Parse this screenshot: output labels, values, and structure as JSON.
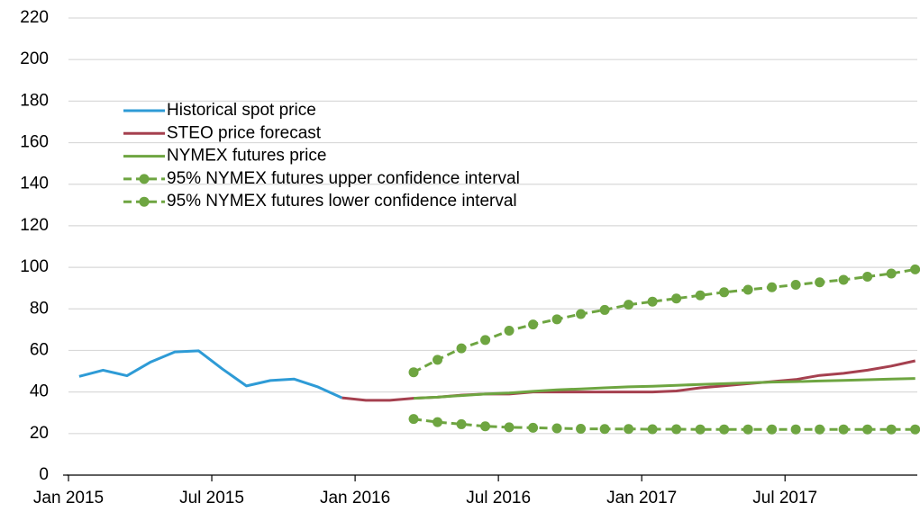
{
  "chart_data": {
    "type": "line",
    "categories": [
      "Jan 2015",
      null,
      null,
      null,
      null,
      null,
      "Jul 2015",
      null,
      null,
      null,
      null,
      null,
      "Jan 2016",
      null,
      null,
      null,
      null,
      null,
      "Jul 2016",
      null,
      null,
      null,
      null,
      null,
      "Jan 2017",
      null,
      null,
      null,
      null,
      null,
      "Jul 2017",
      null,
      null,
      null,
      null,
      null
    ],
    "series": [
      {
        "name": "Historical spot price",
        "color": "#2e9bd6",
        "values": [
          47.5,
          50.5,
          47.8,
          54.5,
          59.3,
          59.8,
          51,
          42.9,
          45.5,
          46.2,
          42.4,
          37.2,
          null,
          null,
          null,
          null,
          null,
          null,
          null,
          null,
          null,
          null,
          null,
          null,
          null,
          null,
          null,
          null,
          null,
          null,
          null,
          null,
          null,
          null,
          null,
          null
        ]
      },
      {
        "name": "STEO price forecast",
        "color": "#a5404f",
        "values": [
          null,
          null,
          null,
          null,
          null,
          null,
          null,
          null,
          null,
          null,
          null,
          37.2,
          36,
          36,
          37,
          37.5,
          38.5,
          39,
          39,
          40,
          40,
          40,
          40,
          40,
          40,
          40.5,
          42,
          43,
          44,
          45,
          46,
          48,
          49,
          50.5,
          52.5,
          55
        ]
      },
      {
        "name": "NYMEX futures price",
        "color": "#6ea541",
        "values": [
          null,
          null,
          null,
          null,
          null,
          null,
          null,
          null,
          null,
          null,
          null,
          null,
          null,
          null,
          37,
          37.5,
          38.3,
          39,
          39.5,
          40.3,
          41,
          41.5,
          42,
          42.5,
          42.8,
          43.2,
          43.6,
          44,
          44.4,
          44.8,
          45,
          45.3,
          45.6,
          45.9,
          46.2,
          46.5
        ]
      },
      {
        "name": "95% NYMEX futures upper confidence interval",
        "color": "#6ea541",
        "dashed": true,
        "markers": true,
        "values": [
          null,
          null,
          null,
          null,
          null,
          null,
          null,
          null,
          null,
          null,
          null,
          null,
          null,
          null,
          49.5,
          55.5,
          61,
          65,
          69.5,
          72.5,
          75,
          77.5,
          79.5,
          82,
          83.5,
          85,
          86.5,
          88,
          89.2,
          90.4,
          91.6,
          92.8,
          94,
          95.5,
          97,
          99
        ]
      },
      {
        "name": "95% NYMEX futures lower confidence interval",
        "color": "#6ea541",
        "dashed": true,
        "markers": true,
        "values": [
          null,
          null,
          null,
          null,
          null,
          null,
          null,
          null,
          null,
          null,
          null,
          null,
          null,
          null,
          27,
          25.5,
          24.5,
          23.5,
          23,
          22.8,
          22.5,
          22.3,
          22.2,
          22.2,
          22.1,
          22.1,
          22,
          22,
          22,
          22,
          22,
          22,
          22,
          22,
          22,
          22
        ]
      }
    ],
    "ylim": [
      0,
      220
    ],
    "yticks": [
      0,
      20,
      40,
      60,
      80,
      100,
      120,
      140,
      160,
      180,
      200,
      220
    ],
    "grid": true,
    "legend": "upper left"
  }
}
